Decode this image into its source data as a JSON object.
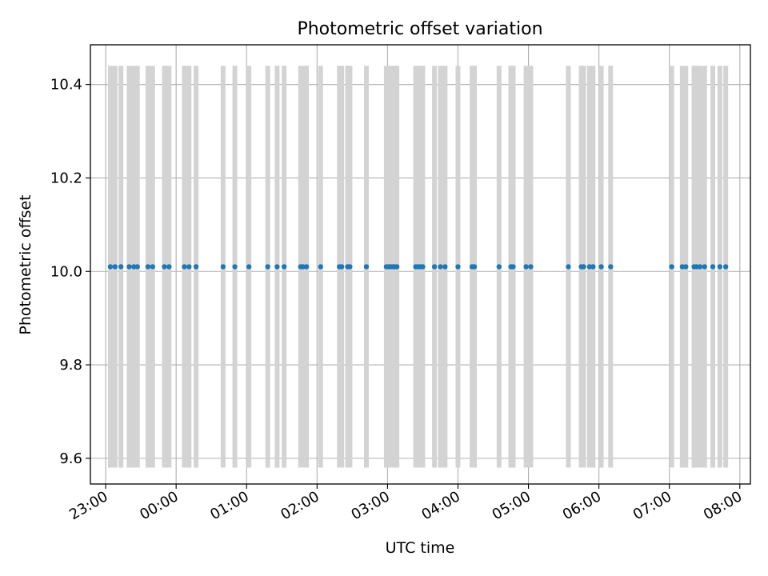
{
  "chart_data": {
    "type": "scatter",
    "title": "Photometric offset variation",
    "xlabel": "UTC time",
    "ylabel": "Photometric offset",
    "xlim": [
      "22:47",
      "08:09"
    ],
    "ylim": [
      9.545,
      10.485
    ],
    "grid": true,
    "x_ticks": [
      "23:00",
      "00:00",
      "01:00",
      "02:00",
      "03:00",
      "04:00",
      "05:00",
      "06:00",
      "07:00",
      "08:00"
    ],
    "y_ticks": [
      "9.6",
      "9.8",
      "10.0",
      "10.2",
      "10.4"
    ],
    "colors": {
      "points": "#1f77b4",
      "error_bars": "#d3d3d3",
      "grid": "#b0b0b0"
    },
    "error_bar": {
      "low": 9.58,
      "high": 10.44
    },
    "series": [
      {
        "x": [
          "23:04",
          "23:08",
          "23:13",
          "23:20",
          "23:24",
          "23:27",
          "23:36",
          "23:40",
          "23:50",
          "23:54",
          "00:07",
          "00:11",
          "00:17",
          "00:40",
          "00:50",
          "01:02",
          "01:18",
          "01:26",
          "01:32",
          "01:46",
          "01:48",
          "01:51",
          "02:03",
          "02:19",
          "02:21",
          "02:26",
          "02:28",
          "02:42",
          "02:59",
          "03:01",
          "03:03",
          "03:05",
          "03:06",
          "03:08",
          "03:24",
          "03:26",
          "03:28",
          "03:30",
          "03:40",
          "03:45",
          "03:49",
          "04:00",
          "04:12",
          "04:14",
          "04:35",
          "04:45",
          "04:47",
          "04:58",
          "05:02",
          "05:34",
          "05:45",
          "05:47",
          "05:52",
          "05:55",
          "06:02",
          "06:10",
          "07:02",
          "07:11",
          "07:14",
          "07:21",
          "07:23",
          "07:26",
          "07:30",
          "07:37",
          "07:43",
          "07:48"
        ],
        "y": [
          10.01,
          10.01,
          10.01,
          10.01,
          10.01,
          10.01,
          10.01,
          10.01,
          10.01,
          10.01,
          10.01,
          10.01,
          10.01,
          10.01,
          10.01,
          10.01,
          10.01,
          10.01,
          10.01,
          10.01,
          10.01,
          10.01,
          10.01,
          10.01,
          10.01,
          10.01,
          10.01,
          10.01,
          10.01,
          10.01,
          10.01,
          10.01,
          10.01,
          10.01,
          10.01,
          10.01,
          10.01,
          10.01,
          10.01,
          10.01,
          10.01,
          10.01,
          10.01,
          10.01,
          10.01,
          10.01,
          10.01,
          10.01,
          10.01,
          10.01,
          10.01,
          10.01,
          10.01,
          10.01,
          10.01,
          10.01,
          10.01,
          10.01,
          10.01,
          10.01,
          10.01,
          10.01,
          10.01,
          10.01,
          10.01,
          10.01
        ]
      }
    ]
  }
}
